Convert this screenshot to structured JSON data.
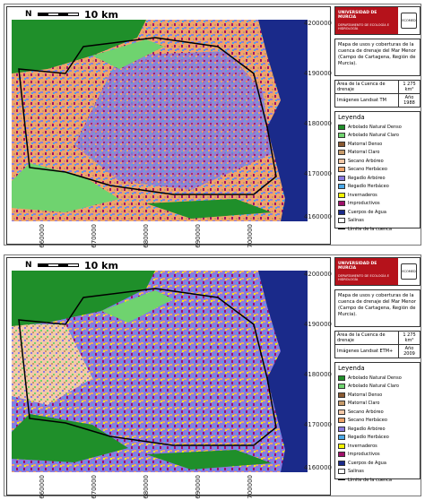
{
  "maps": [
    {
      "scale_label": "10 km",
      "north_label": "N",
      "y_ticks": [
        "4200000",
        "4190000",
        "4180000",
        "4170000",
        "4160000"
      ],
      "x_ticks": [
        "660000",
        "670000",
        "680000",
        "690000",
        "700000"
      ],
      "header": {
        "university": "UNIVERSIDAD DE MURCIA",
        "department": "DEPARTAMENTO DE ECOLOGÍA E HIDROLOGÍA",
        "seal": "ECOMED"
      },
      "description": "Mapa de usos y coberturas de la cuenca de drenaje del Mar Menor (Campo de Cartagena, Región de Murcia).",
      "area_label": "Área de la Cuenca de drenaje",
      "area_value": "1 275 km²",
      "image_label": "Imágenes Landsat TM",
      "year_label": "Año",
      "year_value": "1988"
    },
    {
      "scale_label": "10 km",
      "north_label": "N",
      "y_ticks": [
        "4200000",
        "4190000",
        "4180000",
        "4170000",
        "4160000"
      ],
      "x_ticks": [
        "660000",
        "670000",
        "680000",
        "690000",
        "700000"
      ],
      "header": {
        "university": "UNIVERSIDAD DE MURCIA",
        "department": "DEPARTAMENTO DE ECOLOGÍA E HIDROLOGÍA",
        "seal": "ECOMED"
      },
      "description": "Mapa de usos y coberturas de la cuenca de drenaje del Mar Menor (Campo de Cartagena, Región de Murcia).",
      "area_label": "Área de la Cuenca de drenaje",
      "area_value": "1 275 km²",
      "image_label": "Imágenes Landsat ETM+",
      "year_label": "Año",
      "year_value": "2009"
    }
  ],
  "legend": {
    "title": "Leyenda",
    "items": [
      {
        "label": "Arbolado Natural Denso",
        "color": "#1f8f2a"
      },
      {
        "label": "Arbolado Natural Claro",
        "color": "#6fd36f"
      },
      {
        "label": "Matorral Denso",
        "color": "#8a5a32"
      },
      {
        "label": "Matorral Claro",
        "color": "#c69a6a"
      },
      {
        "label": "Secano Arbóreo",
        "color": "#f4c9a8"
      },
      {
        "label": "Secano Herbáceo",
        "color": "#f0a46a"
      },
      {
        "label": "Regadío Arbóreo",
        "color": "#8a7ae0"
      },
      {
        "label": "Regadío Herbáceo",
        "color": "#4aa8e8"
      },
      {
        "label": "Invernaderos",
        "color": "#f2f200"
      },
      {
        "label": "Improductivos",
        "color": "#a0106a"
      },
      {
        "label": "Cuerpos de Agua",
        "color": "#1a2a8a"
      },
      {
        "label": "Salinas",
        "color": "#ffffff"
      }
    ],
    "boundary_label": "Límite de la cuenca"
  }
}
